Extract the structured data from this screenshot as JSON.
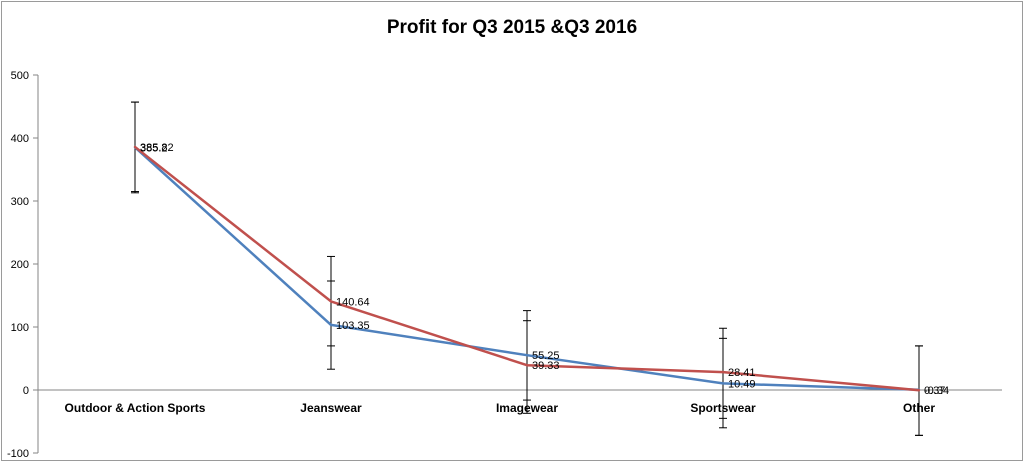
{
  "chart_data": {
    "type": "line",
    "title": "Profit for Q3 2015 &Q3 2016",
    "xlabel": "",
    "ylabel": "",
    "categories": [
      "Outdoor & Action Sports",
      "Jeanswear",
      "Imagewear",
      "Sportswear",
      "Other"
    ],
    "ylim": [
      -100,
      500
    ],
    "yticks": [
      -100,
      0,
      100,
      200,
      300,
      400,
      500
    ],
    "grid": false,
    "legend": "none",
    "error_bars": true,
    "error_bar_values": [
      {
        "series_index": 0,
        "low": [
          313,
          33,
          -16,
          -60,
          -72
        ],
        "high": [
          457,
          173,
          126,
          82,
          70
        ]
      },
      {
        "series_index": 1,
        "low": [
          315,
          70,
          -37,
          -45,
          -72
        ],
        "high": [
          457,
          212,
          110,
          98,
          70
        ]
      }
    ],
    "series": [
      {
        "color": "#4f81bd",
        "values": [
          385.2,
          103.35,
          55.25,
          10.49,
          0.37
        ],
        "labels": [
          "385.2",
          "103.35",
          "55.25",
          "10.49",
          "0.37"
        ]
      },
      {
        "color": "#c0504d",
        "values": [
          385.82,
          140.64,
          39.33,
          28.41,
          -0.34
        ],
        "labels": [
          "385.82",
          "140.64",
          "39.33",
          "28.41",
          "-0.34"
        ]
      }
    ]
  }
}
